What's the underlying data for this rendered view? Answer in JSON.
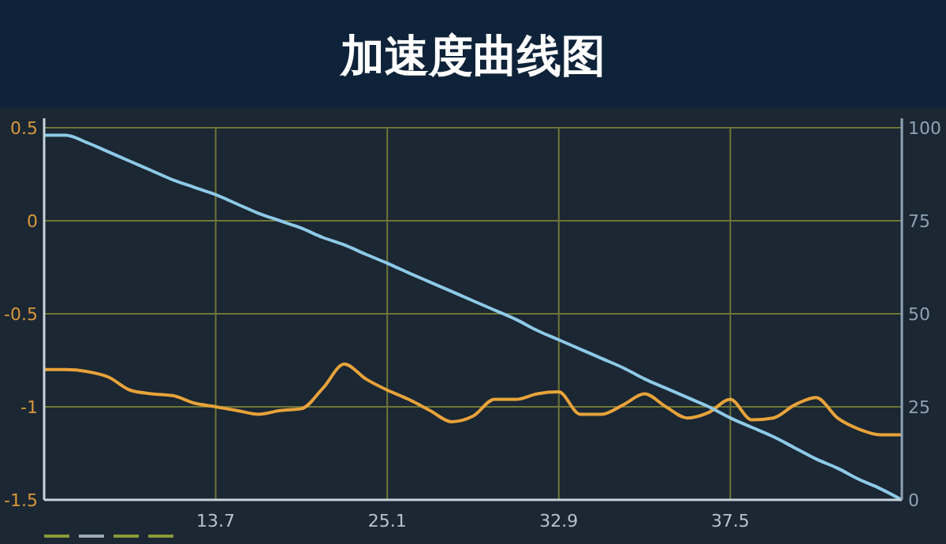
{
  "chart_data": {
    "type": "line",
    "title": "加速度曲线图",
    "categories": [
      null,
      null,
      null,
      null,
      null,
      null,
      null,
      null,
      "13.7",
      null,
      null,
      null,
      null,
      null,
      null,
      null,
      "25.1",
      null,
      null,
      null,
      null,
      null,
      null,
      null,
      "32.9",
      null,
      null,
      null,
      null,
      null,
      null,
      null,
      "37.5",
      null,
      null,
      null,
      null,
      null,
      null,
      null,
      null
    ],
    "series": [
      {
        "color": "#e8a33a",
        "values": [
          -0.8,
          -0.8,
          -0.81,
          -0.84,
          -0.91,
          -0.93,
          -0.94,
          -0.98,
          -1.0,
          -1.02,
          -1.04,
          -1.02,
          -1.01,
          -0.9,
          -0.77,
          -0.85,
          -0.91,
          -0.96,
          -1.02,
          -1.08,
          -1.05,
          -0.96,
          -0.96,
          -0.93,
          -0.92,
          -1.04,
          -1.04,
          -0.99,
          -0.93,
          -1.0,
          -1.06,
          -1.03,
          -0.96,
          -1.07,
          -1.06,
          -0.99,
          -0.95,
          -1.06,
          -1.12,
          -1.15,
          -1.15
        ]
      },
      {
        "color": "#8ec9e8",
        "axis": "y2",
        "values": [
          98,
          98,
          96,
          93.5,
          91,
          88.5,
          86,
          84,
          82,
          79.5,
          77,
          75,
          73,
          70.5,
          68.5,
          66,
          63.6,
          61,
          58.5,
          56,
          53.5,
          51,
          48.5,
          45.5,
          43,
          40.5,
          38,
          35.5,
          32.5,
          30,
          27.5,
          25,
          22,
          19.5,
          17,
          14,
          11,
          8.5,
          5.5,
          3,
          0
        ]
      }
    ],
    "ylim": [
      -1.5,
      0.5
    ],
    "yticks": [
      -1.5,
      -1,
      -0.5,
      0,
      0.5
    ],
    "y2lim": [
      0,
      100
    ],
    "y2ticks": [
      0,
      25,
      50,
      75,
      100
    ],
    "grid": true,
    "marker": "none",
    "line_style": "solid"
  }
}
